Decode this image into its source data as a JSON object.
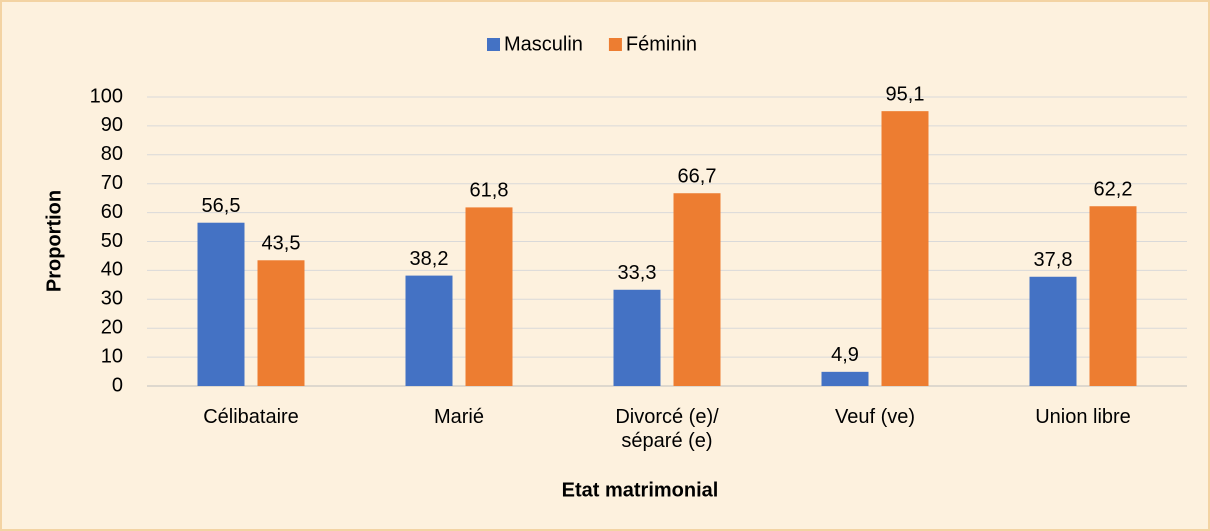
{
  "chart_data": {
    "type": "bar",
    "categories": [
      "Célibataire",
      "Marié",
      "Divorcé (e)/ séparé (e)",
      "Veuf (ve)",
      "Union libre"
    ],
    "series": [
      {
        "name": "Masculin",
        "color": "#4472c4",
        "values": [
          56.5,
          38.2,
          33.3,
          4.9,
          37.8
        ],
        "value_labels": [
          "56,5",
          "38,2",
          "33,3",
          "4,9",
          "37,8"
        ]
      },
      {
        "name": "Féminin",
        "color": "#ed7d31",
        "values": [
          43.5,
          61.8,
          66.7,
          95.1,
          62.2
        ],
        "value_labels": [
          "43,5",
          "61,8",
          "66,7",
          "95,1",
          "62,2"
        ]
      }
    ],
    "ylim": [
      0,
      100
    ],
    "yticks": [
      0,
      10,
      20,
      30,
      40,
      50,
      60,
      70,
      80,
      90,
      100
    ],
    "ylabel": "Proportion",
    "xlabel": "Etat matrimonial",
    "grid": true,
    "legend": "top"
  }
}
